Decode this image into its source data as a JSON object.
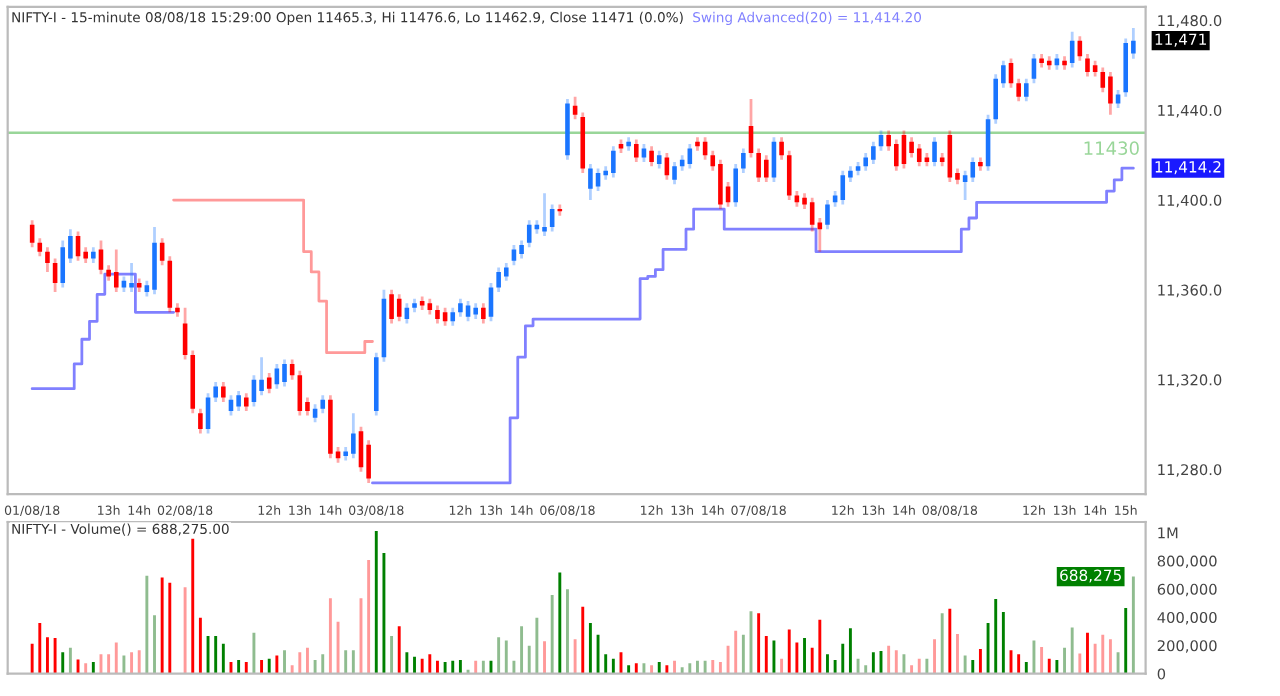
{
  "chart_data": [
    {
      "type": "candlestick",
      "title": "NIFTY-I - 15-minute 08/08/18 15:29:00 Open 11465.3, Hi 11476.6, Lo 11462.9, Close 11471 (0.0%)",
      "categories": [
        "01/08/18",
        null,
        null,
        null,
        null,
        null,
        null,
        null,
        null,
        null,
        "13h",
        null,
        null,
        null,
        "14h",
        null,
        null,
        null,
        null,
        null,
        "02/08/18",
        null,
        null,
        null,
        null,
        null,
        null,
        null,
        null,
        null,
        null,
        "12h",
        null,
        null,
        null,
        "13h",
        null,
        null,
        null,
        "14h",
        null,
        null,
        null,
        null,
        null,
        "03/08/18",
        null,
        null,
        null,
        null,
        null,
        null,
        null,
        null,
        null,
        null,
        "12h",
        null,
        null,
        null,
        "13h",
        null,
        null,
        null,
        "14h",
        null,
        null,
        null,
        null,
        null,
        "06/08/18",
        null,
        null,
        null,
        null,
        null,
        null,
        null,
        null,
        null,
        null,
        "12h",
        null,
        null,
        null,
        "13h",
        null,
        null,
        null,
        "14h",
        null,
        null,
        null,
        null,
        null,
        "07/08/18",
        null,
        null,
        null,
        null,
        null,
        null,
        null,
        null,
        null,
        null,
        "12h",
        null,
        null,
        null,
        "13h",
        null,
        null,
        null,
        "14h",
        null,
        null,
        null,
        null,
        null,
        "08/08/18",
        null,
        null,
        null,
        null,
        null,
        null,
        null,
        null,
        null,
        null,
        "12h",
        null,
        null,
        null,
        "13h",
        null,
        null,
        null,
        "14h",
        null,
        null,
        null,
        "15h",
        null
      ],
      "ohlc": [
        [
          11389,
          11391,
          11379,
          11381
        ],
        [
          11381,
          11383,
          11375,
          11377
        ],
        [
          11377,
          11379,
          11368,
          11372
        ],
        [
          11372,
          11374,
          11359,
          11363
        ],
        [
          11363,
          11382,
          11361,
          11379
        ],
        [
          11374,
          11387,
          11372,
          11384
        ],
        [
          11384,
          11386,
          11373,
          11375
        ],
        [
          11377,
          11379,
          11372,
          11374
        ],
        [
          11374,
          11379,
          11372,
          11377
        ],
        [
          11378,
          11382,
          11367,
          11369
        ],
        [
          11369,
          11371,
          11364,
          11366
        ],
        [
          11368,
          11378,
          11359,
          11361
        ],
        [
          11361,
          11366,
          11359,
          11364
        ],
        [
          11361,
          11372,
          11359,
          11363
        ],
        [
          11363,
          11365,
          11359,
          11361
        ],
        [
          11359,
          11364,
          11357,
          11362
        ],
        [
          11360,
          11388,
          11358,
          11381
        ],
        [
          11381,
          11383,
          11371,
          11373
        ],
        [
          11373,
          11375,
          11350,
          11352
        ],
        [
          11352,
          11354,
          11348,
          11350
        ],
        [
          11345,
          11352,
          11329,
          11331
        ],
        [
          11331,
          11333,
          11305,
          11307
        ],
        [
          11305,
          11307,
          11296,
          11298
        ],
        [
          11298,
          11314,
          11296,
          11312
        ],
        [
          11312,
          11319,
          11310,
          11317
        ],
        [
          11317,
          11319,
          11310,
          11312
        ],
        [
          11306,
          11313,
          11304,
          11311
        ],
        [
          11308,
          11315,
          11306,
          11313
        ],
        [
          11312,
          11314,
          11306,
          11308
        ],
        [
          11310,
          11322,
          11308,
          11320
        ],
        [
          11315,
          11330,
          11313,
          11320
        ],
        [
          11321,
          11323,
          11314,
          11316
        ],
        [
          11318,
          11327,
          11316,
          11325
        ],
        [
          11319,
          11329,
          11317,
          11327
        ],
        [
          11327,
          11329,
          11320,
          11322
        ],
        [
          11322,
          11324,
          11304,
          11306
        ],
        [
          11310,
          11312,
          11304,
          11306
        ],
        [
          11303,
          11309,
          11301,
          11307
        ],
        [
          11307,
          11313,
          11305,
          11311
        ],
        [
          11311,
          11313,
          11285,
          11287
        ],
        [
          11288,
          11290,
          11283,
          11285
        ],
        [
          11286,
          11290,
          11284,
          11288
        ],
        [
          11287,
          11305,
          11285,
          11296
        ],
        [
          11297,
          11299,
          11279,
          11281
        ],
        [
          11291,
          11293,
          11274,
          11276
        ],
        [
          11306,
          11332,
          11304,
          11330
        ],
        [
          11330,
          11360,
          11328,
          11356
        ],
        [
          11358,
          11360,
          11345,
          11347
        ],
        [
          11356,
          11358,
          11346,
          11348
        ],
        [
          11347,
          11354,
          11345,
          11352
        ],
        [
          11352,
          11356,
          11350,
          11354
        ],
        [
          11355,
          11357,
          11351,
          11353
        ],
        [
          11354,
          11356,
          11349,
          11351
        ],
        [
          11351,
          11353,
          11345,
          11347
        ],
        [
          11350,
          11352,
          11344,
          11346
        ],
        [
          11346,
          11352,
          11344,
          11350
        ],
        [
          11350,
          11356,
          11348,
          11354
        ],
        [
          11348,
          11355,
          11346,
          11353
        ],
        [
          11349,
          11354,
          11347,
          11352
        ],
        [
          11352,
          11354,
          11345,
          11347
        ],
        [
          11348,
          11363,
          11346,
          11361
        ],
        [
          11361,
          11370,
          11359,
          11368
        ],
        [
          11366,
          11372,
          11364,
          11370
        ],
        [
          11373,
          11380,
          11371,
          11378
        ],
        [
          11376,
          11382,
          11374,
          11380
        ],
        [
          11381,
          11391,
          11379,
          11389
        ],
        [
          11387,
          11391,
          11385,
          11389
        ],
        [
          11386,
          11403,
          11384,
          11388
        ],
        [
          11388,
          11398,
          11386,
          11396
        ],
        [
          11396,
          11398,
          11393,
          11395
        ],
        [
          11420,
          11445,
          11418,
          11443
        ],
        [
          11442,
          11446,
          11436,
          11438
        ],
        [
          11437,
          11439,
          11412,
          11414
        ],
        [
          11405,
          11416,
          11400,
          11414
        ],
        [
          11406,
          11414,
          11404,
          11412
        ],
        [
          11411,
          11415,
          11409,
          11413
        ],
        [
          11412,
          11424,
          11410,
          11422
        ],
        [
          11425,
          11427,
          11421,
          11423
        ],
        [
          11424,
          11428,
          11422,
          11426
        ],
        [
          11425,
          11427,
          11417,
          11419
        ],
        [
          11419,
          11425,
          11417,
          11423
        ],
        [
          11422,
          11424,
          11415,
          11417
        ],
        [
          11416,
          11422,
          11414,
          11420
        ],
        [
          11419,
          11421,
          11409,
          11411
        ],
        [
          11409,
          11417,
          11407,
          11415
        ],
        [
          11415,
          11420,
          11413,
          11418
        ],
        [
          11416,
          11425,
          11414,
          11423
        ],
        [
          11426,
          11428,
          11422,
          11424
        ],
        [
          11426,
          11428,
          11418,
          11420
        ],
        [
          11420,
          11422,
          11413,
          11415
        ],
        [
          11416,
          11418,
          11396,
          11398
        ],
        [
          11406,
          11408,
          11397,
          11399
        ],
        [
          11399,
          11416,
          11397,
          11414
        ],
        [
          11414,
          11423,
          11412,
          11421
        ],
        [
          11433,
          11445,
          11419,
          11421
        ],
        [
          11421,
          11423,
          11408,
          11410
        ],
        [
          11418,
          11420,
          11408,
          11410
        ],
        [
          11410,
          11428,
          11408,
          11426
        ],
        [
          11426,
          11428,
          11418,
          11420
        ],
        [
          11420,
          11422,
          11400,
          11402
        ],
        [
          11402,
          11404,
          11397,
          11399
        ],
        [
          11401,
          11403,
          11396,
          11398
        ],
        [
          11399,
          11401,
          11386,
          11389
        ],
        [
          11390,
          11392,
          11377,
          11387
        ],
        [
          11389,
          11400,
          11387,
          11398
        ],
        [
          11399,
          11404,
          11397,
          11402
        ],
        [
          11400,
          11413,
          11398,
          11411
        ],
        [
          11410,
          11415,
          11408,
          11413
        ],
        [
          11413,
          11417,
          11411,
          11415
        ],
        [
          11415,
          11421,
          11413,
          11419
        ],
        [
          11418,
          11426,
          11416,
          11424
        ],
        [
          11424,
          11431,
          11422,
          11429
        ],
        [
          11429,
          11431,
          11422,
          11424
        ],
        [
          11425,
          11427,
          11413,
          11415
        ],
        [
          11429,
          11431,
          11414,
          11416
        ],
        [
          11426,
          11428,
          11419,
          11421
        ],
        [
          11423,
          11425,
          11415,
          11417
        ],
        [
          11419,
          11421,
          11415,
          11417
        ],
        [
          11417,
          11428,
          11415,
          11426
        ],
        [
          11419,
          11421,
          11415,
          11417
        ],
        [
          11429,
          11431,
          11408,
          11410
        ],
        [
          11412,
          11414,
          11407,
          11409
        ],
        [
          11408,
          11413,
          11400,
          11411
        ],
        [
          11410,
          11419,
          11408,
          11417
        ],
        [
          11417,
          11419,
          11413,
          11415
        ],
        [
          11415,
          11438,
          11413,
          11436
        ],
        [
          11436,
          11456,
          11434,
          11454
        ],
        [
          11452,
          11462,
          11450,
          11460
        ],
        [
          11461,
          11463,
          11450,
          11452
        ],
        [
          11452,
          11454,
          11444,
          11446
        ],
        [
          11446,
          11454,
          11444,
          11452
        ],
        [
          11454,
          11465,
          11452,
          11463
        ],
        [
          11463,
          11465,
          11459,
          11461
        ],
        [
          11462,
          11464,
          11458,
          11460
        ],
        [
          11460,
          11465,
          11458,
          11463
        ],
        [
          11462,
          11464,
          11458,
          11460
        ],
        [
          11461,
          11475,
          11459,
          11471
        ],
        [
          11471,
          11473,
          11462,
          11464
        ],
        [
          11463,
          11465,
          11455,
          11457
        ],
        [
          11460,
          11462,
          11455,
          11457
        ],
        [
          11457,
          11459,
          11448,
          11450
        ],
        [
          11455,
          11457,
          11438,
          11443
        ],
        [
          11443,
          11449,
          11441,
          11447
        ],
        [
          11448,
          11472,
          11446,
          11470
        ],
        [
          11465.3,
          11476.6,
          11462.9,
          11471
        ]
      ],
      "colors": [
        "#ff0000",
        "#ff0000",
        "#ff0000",
        "#ff0000",
        "#1a75ff",
        "#1a75ff",
        "#ff0000",
        "#ff0000",
        "#1a75ff",
        "#ff0000",
        "#ff0000",
        "#ff0000",
        "#1a75ff",
        "#1a75ff",
        "#ff0000",
        "#1a75ff",
        "#1a75ff",
        "#ff0000",
        "#ff0000",
        "#ff0000",
        "#ff0000",
        "#ff0000",
        "#ff0000",
        "#1a75ff",
        "#1a75ff",
        "#ff0000",
        "#1a75ff",
        "#1a75ff",
        "#ff0000",
        "#1a75ff",
        "#1a75ff",
        "#ff0000",
        "#1a75ff",
        "#1a75ff",
        "#ff0000",
        "#ff0000",
        "#ff0000",
        "#1a75ff",
        "#1a75ff",
        "#ff0000",
        "#ff0000",
        "#1a75ff",
        "#1a75ff",
        "#ff0000",
        "#ff0000",
        "#1a75ff",
        "#1a75ff",
        "#ff0000",
        "#ff0000",
        "#1a75ff",
        "#1a75ff",
        "#ff0000",
        "#ff0000",
        "#ff0000",
        "#ff0000",
        "#1a75ff",
        "#1a75ff",
        "#1a75ff",
        "#1a75ff",
        "#ff0000",
        "#1a75ff",
        "#1a75ff",
        "#1a75ff",
        "#1a75ff",
        "#1a75ff",
        "#1a75ff",
        "#1a75ff",
        "#1a75ff",
        "#1a75ff",
        "#ff0000",
        "#1a75ff",
        "#ff0000",
        "#ff0000",
        "#1a75ff",
        "#1a75ff",
        "#1a75ff",
        "#1a75ff",
        "#ff0000",
        "#1a75ff",
        "#ff0000",
        "#1a75ff",
        "#ff0000",
        "#1a75ff",
        "#ff0000",
        "#1a75ff",
        "#1a75ff",
        "#1a75ff",
        "#ff0000",
        "#ff0000",
        "#ff0000",
        "#ff0000",
        "#ff0000",
        "#1a75ff",
        "#1a75ff",
        "#ff0000",
        "#ff0000",
        "#ff0000",
        "#1a75ff",
        "#ff0000",
        "#ff0000",
        "#ff0000",
        "#ff0000",
        "#ff0000",
        "#ff0000",
        "#1a75ff",
        "#1a75ff",
        "#1a75ff",
        "#1a75ff",
        "#1a75ff",
        "#1a75ff",
        "#1a75ff",
        "#1a75ff",
        "#ff0000",
        "#ff0000",
        "#ff0000",
        "#ff0000",
        "#ff0000",
        "#ff0000",
        "#1a75ff",
        "#ff0000",
        "#ff0000",
        "#ff0000",
        "#1a75ff",
        "#1a75ff",
        "#ff0000",
        "#1a75ff",
        "#1a75ff",
        "#1a75ff",
        "#ff0000",
        "#ff0000",
        "#1a75ff",
        "#1a75ff",
        "#ff0000",
        "#ff0000",
        "#1a75ff",
        "#ff0000",
        "#1a75ff",
        "#ff0000",
        "#ff0000",
        "#ff0000",
        "#ff0000",
        "#ff0000",
        "#1a75ff",
        "#1a75ff",
        "#1a75ff"
      ],
      "series": [
        {
          "name": "Swing Advanced(20) = 11,414.20",
          "type": "step",
          "color": "#8080ff",
          "values": [
            11316,
            11316,
            11316,
            11316,
            11316,
            11316,
            11327,
            11338,
            11346,
            11358,
            11367,
            11367,
            11367,
            11367,
            11350,
            11350,
            11350,
            11350,
            11350,
            null,
            null,
            null,
            null,
            null,
            null,
            null,
            null,
            null,
            null,
            null,
            null,
            null,
            null,
            null,
            null,
            null,
            null,
            null,
            null,
            null,
            null,
            null,
            null,
            null,
            null,
            11274,
            11274,
            11274,
            11274,
            11274,
            11274,
            11274,
            11274,
            11274,
            11274,
            11274,
            11274,
            11274,
            11274,
            11274,
            11274,
            11274,
            11274,
            11303,
            11330,
            11344,
            11347,
            11347,
            11347,
            11347,
            11347,
            11347,
            11347,
            11347,
            11347,
            11347,
            11347,
            11347,
            11347,
            11347,
            11365,
            11366,
            11369,
            11378,
            11378,
            11378,
            11387,
            11396,
            11396,
            11396,
            11396,
            11387,
            11387,
            11387,
            11387,
            11387,
            11387,
            11387,
            11387,
            11387,
            11387,
            11387,
            11387,
            11377,
            11377,
            11377,
            11377,
            11377,
            11377,
            11377,
            11377,
            11377,
            11377,
            11377,
            11377,
            11377,
            11377,
            11377,
            11377,
            11377,
            11377,
            11377,
            11387,
            11392,
            11399,
            11399,
            11399,
            11399,
            11399,
            11399,
            11399,
            11399,
            11399,
            11399,
            11399,
            11399,
            11399,
            11399,
            11399,
            11399,
            11399,
            11404,
            11409,
            11414.2,
            11414.2
          ]
        },
        {
          "type": "step",
          "color": "#ff9999",
          "values": [
            null,
            null,
            null,
            null,
            null,
            null,
            null,
            null,
            null,
            null,
            null,
            null,
            null,
            null,
            null,
            null,
            null,
            null,
            null,
            11400,
            11400,
            11400,
            11400,
            11400,
            11400,
            11400,
            11400,
            11400,
            11400,
            11400,
            11400,
            11400,
            11400,
            11400,
            11400,
            11400,
            11377,
            11368,
            11355,
            11332,
            11332,
            11332,
            11332,
            11332,
            11337,
            null,
            null,
            null,
            null,
            null,
            null,
            null,
            null,
            null,
            null,
            null,
            null,
            null,
            null,
            null,
            null,
            null,
            null,
            null,
            null,
            null,
            null,
            null,
            null,
            null,
            null,
            null,
            null,
            null,
            null,
            null,
            null,
            null,
            null,
            null,
            null,
            null,
            null,
            null,
            null,
            null,
            null,
            null,
            null,
            null,
            null,
            null,
            null,
            null,
            null,
            null,
            null,
            null,
            null,
            null,
            null,
            null,
            null,
            null,
            null,
            null,
            null,
            null,
            null,
            null,
            null,
            null,
            null,
            null,
            null,
            null,
            null,
            null,
            null,
            null,
            null,
            null,
            null,
            null,
            null,
            null,
            null,
            null,
            null,
            null,
            null,
            null,
            null,
            null,
            null,
            null,
            null,
            null,
            null,
            null,
            null,
            null,
            null,
            null,
            null
          ]
        }
      ],
      "ylim": [
        11269,
        11486
      ],
      "yticks": [
        {
          "value": 11280,
          "label": "11,280.0"
        },
        {
          "value": 11320,
          "label": "11,320.0"
        },
        {
          "value": 11360,
          "label": "11,360.0"
        },
        {
          "value": 11400,
          "label": "11,400.0"
        },
        {
          "value": 11440,
          "label": "11,440.0"
        },
        {
          "value": 11480,
          "label": "11,480.0"
        }
      ],
      "ref_lines": [
        {
          "axis": "y",
          "value": 11430,
          "label": "11430",
          "color": "#99d699"
        }
      ],
      "annotations": [
        "11,471",
        "11,414.2"
      ],
      "grid": false
    },
    {
      "type": "bar",
      "title": "NIFTY-I - Volume() = 688,275.00",
      "categories": [
        null,
        null,
        null,
        null,
        null,
        null,
        null,
        null,
        null,
        null,
        null,
        null,
        null,
        null,
        null,
        null,
        null,
        null,
        null,
        null,
        null,
        null,
        null,
        null,
        null,
        null,
        null,
        null,
        null,
        null,
        null,
        null,
        null,
        null,
        null,
        null,
        null,
        null,
        null,
        null,
        null,
        null,
        null,
        null,
        null,
        null,
        null,
        null,
        null,
        null,
        null,
        null,
        null,
        null,
        null,
        null,
        null,
        null,
        null,
        null,
        null,
        null,
        null,
        null,
        null,
        null,
        null,
        null,
        null,
        null,
        null,
        null,
        null,
        null,
        null,
        null,
        null,
        null,
        null,
        null,
        null,
        null,
        null,
        null,
        null,
        null,
        null,
        null,
        null,
        null,
        null,
        null,
        null,
        null,
        null,
        null,
        null,
        null,
        null,
        null,
        null,
        null,
        null,
        null,
        null,
        null,
        null,
        null,
        null,
        null,
        null,
        null,
        null,
        null,
        null,
        null,
        null,
        null,
        null,
        null,
        null,
        null,
        null,
        null,
        null,
        null,
        null,
        null,
        null,
        null,
        null,
        null,
        null,
        null,
        null,
        null,
        null,
        null,
        null,
        null,
        null,
        null,
        null,
        null,
        null
      ],
      "values": [
        212000,
        359000,
        258000,
        253000,
        152000,
        184000,
        101000,
        74000,
        83000,
        138000,
        138000,
        221000,
        129000,
        152000,
        166000,
        695000,
        414000,
        681000,
        644000,
        null,
        612000,
        957000,
        396000,
        267000,
        267000,
        212000,
        83000,
        97000,
        83000,
        290000,
        97000,
        106000,
        129000,
        166000,
        60000,
        152000,
        184000,
        97000,
        138000,
        534000,
        368000,
        166000,
        166000,
        534000,
        805000,
        1012000,
        856000,
        267000,
        336000,
        152000,
        120000,
        106000,
        138000,
        92000,
        83000,
        92000,
        97000,
        28000,
        92000,
        92000,
        92000,
        258000,
        235000,
        92000,
        336000,
        198000,
        396000,
        230000,
        557000,
        718000,
        598000,
        244000,
        474000,
        359000,
        276000,
        138000,
        106000,
        152000,
        60000,
        74000,
        74000,
        60000,
        83000,
        60000,
        92000,
        46000,
        74000,
        92000,
        92000,
        97000,
        83000,
        198000,
        304000,
        276000,
        442000,
        428000,
        267000,
        235000,
        106000,
        313000,
        221000,
        253000,
        184000,
        382000,
        138000,
        97000,
        212000,
        322000,
        106000,
        60000,
        152000,
        161000,
        198000,
        166000,
        138000,
        60000,
        106000,
        106000,
        244000,
        428000,
        460000,
        281000,
        129000,
        97000,
        175000,
        359000,
        529000,
        437000,
        166000,
        138000,
        83000,
        235000,
        189000,
        106000,
        97000,
        184000,
        327000,
        143000,
        290000,
        212000,
        276000,
        244000,
        152000,
        465000,
        688275
      ],
      "colors": [
        "#ff0000",
        "#ff0000",
        "#ff0000",
        "#ff0000",
        "#008000",
        "#8fbc8f",
        "#ff0000",
        "#ff9999",
        "#008000",
        "#ff9999",
        "#ff9999",
        "#ff9999",
        "#8fbc8f",
        "#ff9999",
        "#ff9999",
        "#8fbc8f",
        "#8fbc8f",
        "#ff0000",
        "#ff0000",
        "#ff0000",
        "#ff9999",
        "#ff0000",
        "#ff0000",
        "#008000",
        "#008000",
        "#008000",
        "#ff0000",
        "#008000",
        "#ff0000",
        "#8fbc8f",
        "#ff0000",
        "#008000",
        "#ff0000",
        "#8fbc8f",
        "#ff9999",
        "#ff9999",
        "#ff9999",
        "#8fbc8f",
        "#8fbc8f",
        "#ff9999",
        "#ff9999",
        "#8fbc8f",
        "#8fbc8f",
        "#ff9999",
        "#ff9999",
        "#008000",
        "#008000",
        "#8fbc8f",
        "#ff0000",
        "#008000",
        "#008000",
        "#ff0000",
        "#ff0000",
        "#ff0000",
        "#008000",
        "#008000",
        "#008000",
        "#8fbc8f",
        "#ff9999",
        "#8fbc8f",
        "#008000",
        "#8fbc8f",
        "#8fbc8f",
        "#8fbc8f",
        "#8fbc8f",
        "#8fbc8f",
        "#8fbc8f",
        "#ff9999",
        "#8fbc8f",
        "#008000",
        "#8fbc8f",
        "#ff9999",
        "#ff0000",
        "#008000",
        "#008000",
        "#008000",
        "#008000",
        "#ff0000",
        "#008000",
        "#ff0000",
        "#8fbc8f",
        "#ff9999",
        "#008000",
        "#ff0000",
        "#ff9999",
        "#8fbc8f",
        "#8fbc8f",
        "#8fbc8f",
        "#8fbc8f",
        "#ff9999",
        "#ff9999",
        "#ff9999",
        "#ff9999",
        "#8fbc8f",
        "#8fbc8f",
        "#ff0000",
        "#ff0000",
        "#008000",
        "#ff9999",
        "#ff0000",
        "#ff0000",
        "#008000",
        "#ff0000",
        "#ff0000",
        "#008000",
        "#008000",
        "#008000",
        "#008000",
        "#8fbc8f",
        "#8fbc8f",
        "#008000",
        "#008000",
        "#ff9999",
        "#ff9999",
        "#8fbc8f",
        "#ff9999",
        "#ff9999",
        "#8fbc8f",
        "#ff9999",
        "#8fbc8f",
        "#ff0000",
        "#ff9999",
        "#8fbc8f",
        "#008000",
        "#ff0000",
        "#008000",
        "#008000",
        "#008000",
        "#ff0000",
        "#ff0000",
        "#008000",
        "#8fbc8f",
        "#ff9999",
        "#ff0000",
        "#008000",
        "#8fbc8f",
        "#8fbc8f",
        "#ff9999",
        "#ff0000",
        "#ff9999",
        "#ff9999",
        "#ff9999",
        "#8fbc8f",
        "#008000",
        "#8fbc8f"
      ],
      "ylim": [
        0,
        1075000
      ],
      "yticks": [
        0,
        {
          "value": 200000,
          "label": "200,000"
        },
        {
          "value": 400000,
          "label": "400,000"
        },
        {
          "value": 600000,
          "label": "600,000"
        },
        {
          "value": 800000,
          "label": "800,000"
        },
        {
          "value": 1000000,
          "label": "1M"
        }
      ],
      "tick_labels": "y",
      "annotations": [
        "688,275"
      ],
      "grid": false
    }
  ]
}
